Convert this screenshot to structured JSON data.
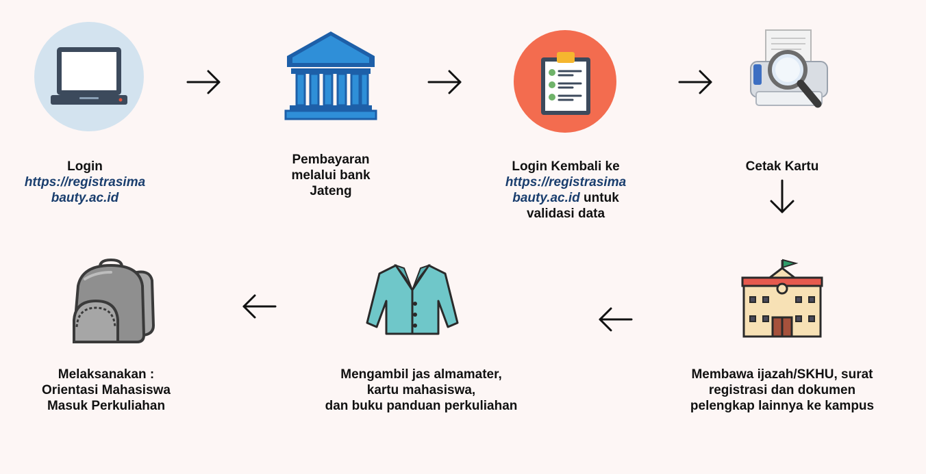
{
  "steps": {
    "step1": {
      "title": "Login",
      "link_line1": "https://registrasima",
      "link_line2": "bauty.ac.id",
      "icon": "laptop-icon"
    },
    "step2": {
      "line1": "Pembayaran",
      "line2": "melalui bank",
      "line3": "Jateng",
      "icon": "bank-icon"
    },
    "step3": {
      "title": "Login Kembali ke",
      "link_line1": "https://registrasima",
      "link_line2": "bauty.ac.id",
      "after_link": " untuk",
      "line4": "validasi data",
      "icon": "clipboard-icon"
    },
    "step4": {
      "title": "Cetak Kartu",
      "icon": "printer-magnifier-icon"
    },
    "step5": {
      "line1": "Membawa ijazah/SKHU, surat",
      "line2": "registrasi dan dokumen",
      "line3": "pelengkap lainnya ke kampus",
      "icon": "school-building-icon"
    },
    "step6": {
      "line1": "Mengambil jas almamater,",
      "line2": "kartu mahasiswa,",
      "line3": "dan buku panduan perkuliahan",
      "icon": "jacket-icon"
    },
    "step7": {
      "line1": "Melaksanakan :",
      "line2": "Orientasi Mahasiswa",
      "line3": "Masuk Perkuliahan",
      "icon": "backpack-icon"
    }
  },
  "colors": {
    "background": "#fdf6f5",
    "link": "#1a3e6e",
    "laptop_circle": "#d3e3ef",
    "bank_blue": "#2f8fd8",
    "clipboard_circle": "#f36c4f",
    "jacket": "#6fc7c9",
    "backpack": "#8f8f8f"
  }
}
